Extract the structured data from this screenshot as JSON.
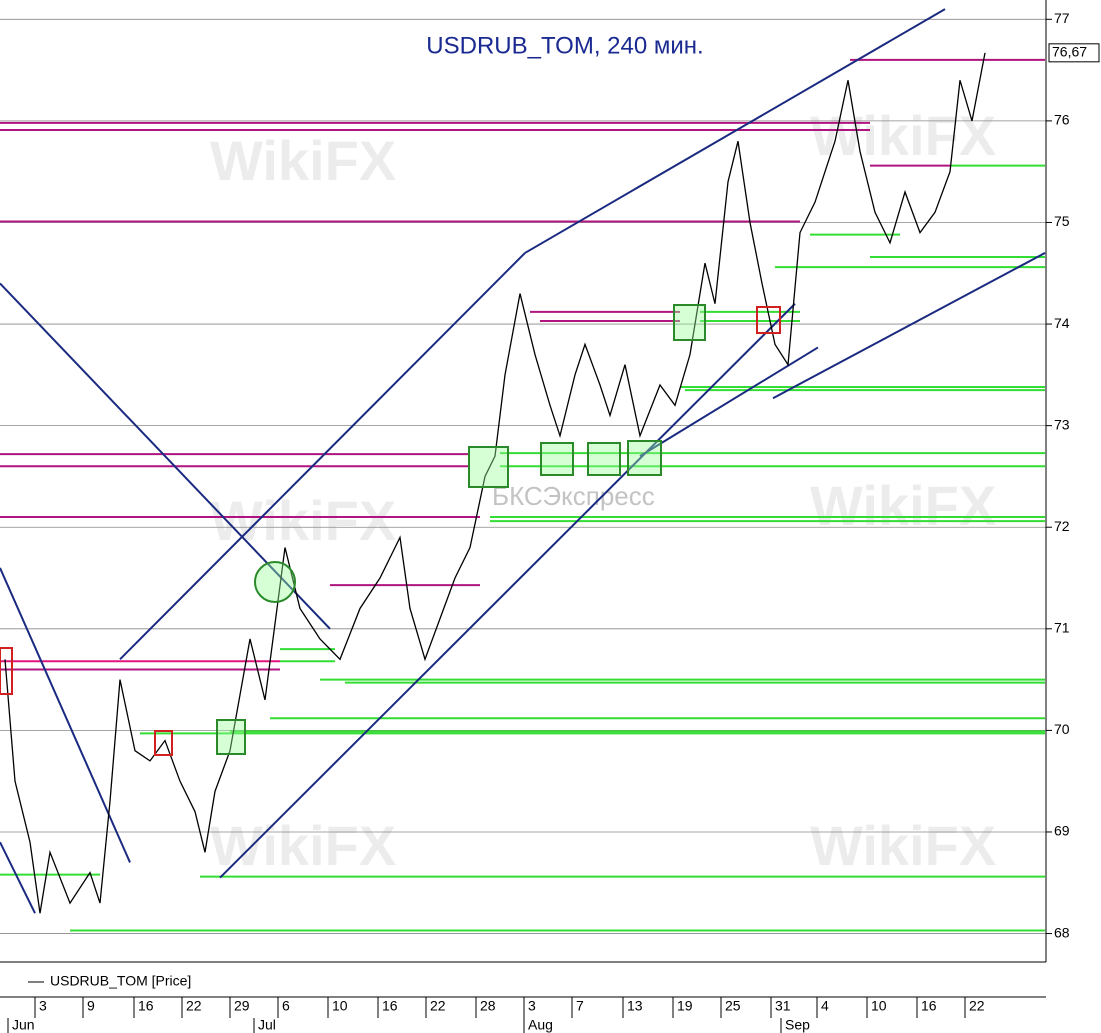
{
  "chart_data": {
    "type": "line",
    "title": "USDRUB_TOM, 240 мин.",
    "watermarks": [
      "WikiFX",
      "БКСЭкспресс"
    ],
    "series": [
      {
        "name": "USDRUB_TOM [Price]",
        "color": "#000000",
        "x": [
          5,
          15,
          30,
          40,
          50,
          70,
          90,
          100,
          110,
          120,
          135,
          150,
          165,
          180,
          195,
          205,
          215,
          230,
          250,
          265,
          285,
          300,
          320,
          340,
          360,
          380,
          400,
          410,
          425,
          440,
          455,
          470,
          485,
          495,
          505,
          520,
          535,
          550,
          560,
          575,
          585,
          600,
          610,
          625,
          640,
          660,
          675,
          690,
          705,
          715,
          728,
          738,
          750,
          762,
          775,
          788,
          800,
          815,
          835,
          848,
          860,
          875,
          890,
          905,
          920,
          935,
          950,
          960,
          972,
          985
        ],
        "values": [
          70.7,
          69.5,
          68.9,
          68.2,
          68.8,
          68.3,
          68.6,
          68.3,
          69.3,
          70.5,
          69.8,
          69.7,
          69.9,
          69.5,
          69.2,
          68.8,
          69.4,
          69.8,
          70.9,
          70.3,
          71.8,
          71.2,
          70.9,
          70.7,
          71.2,
          71.5,
          71.9,
          71.2,
          70.7,
          71.1,
          71.5,
          71.8,
          72.5,
          72.7,
          73.5,
          74.3,
          73.7,
          73.2,
          72.9,
          73.5,
          73.8,
          73.4,
          73.1,
          73.6,
          72.9,
          73.4,
          73.2,
          73.7,
          74.6,
          74.2,
          75.4,
          75.8,
          75.0,
          74.4,
          73.8,
          73.6,
          74.9,
          75.2,
          75.8,
          76.4,
          75.7,
          75.1,
          74.8,
          75.3,
          74.9,
          75.1,
          75.5,
          76.4,
          76.0,
          76.67
        ]
      }
    ],
    "last_price": {
      "value": 76.67,
      "label": "76,67"
    },
    "xlim": [
      0,
      1045
    ],
    "ylim": [
      67.72,
      77.19
    ],
    "yticks": [
      68,
      69,
      70,
      71,
      72,
      73,
      74,
      75,
      76,
      77
    ],
    "xticks": [
      {
        "value": 35,
        "label": "3"
      },
      {
        "value": 83,
        "label": "9"
      },
      {
        "value": 134,
        "label": "16"
      },
      {
        "value": 182,
        "label": "22"
      },
      {
        "value": 230,
        "label": "29"
      },
      {
        "value": 278,
        "label": "6"
      },
      {
        "value": 328,
        "label": "10"
      },
      {
        "value": 378,
        "label": "16"
      },
      {
        "value": 426,
        "label": "22"
      },
      {
        "value": 476,
        "label": "28"
      },
      {
        "value": 524,
        "label": "3"
      },
      {
        "value": 572,
        "label": "7"
      },
      {
        "value": 623,
        "label": "13"
      },
      {
        "value": 673,
        "label": "19"
      },
      {
        "value": 721,
        "label": "25"
      },
      {
        "value": 771,
        "label": "31"
      },
      {
        "value": 817,
        "label": "4"
      },
      {
        "value": 867,
        "label": "10"
      },
      {
        "value": 917,
        "label": "16"
      },
      {
        "value": 965,
        "label": "22"
      }
    ],
    "month_ticks": [
      {
        "value": 8,
        "label": "Jun"
      },
      {
        "value": 254,
        "label": "Jul"
      },
      {
        "value": 524,
        "label": "Aug"
      },
      {
        "value": 781,
        "label": "Sep"
      }
    ],
    "grid": true,
    "levels": [
      {
        "x": [
          0,
          870
        ],
        "value": 75.98,
        "color": "#b0157f"
      },
      {
        "x": [
          0,
          870
        ],
        "value": 75.91,
        "color": "#b0157f"
      },
      {
        "x": [
          0,
          800
        ],
        "value": 75.01,
        "color": "#b0157f"
      },
      {
        "x": [
          0,
          470
        ],
        "value": 72.72,
        "color": "#b0157f"
      },
      {
        "x": [
          0,
          470
        ],
        "value": 72.6,
        "color": "#b0157f"
      },
      {
        "x": [
          0,
          480
        ],
        "value": 72.1,
        "color": "#b0157f"
      },
      {
        "x": [
          0,
          280
        ],
        "value": 70.68,
        "color": "#e0157f"
      },
      {
        "x": [
          0,
          280
        ],
        "value": 70.6,
        "color": "#b0157f"
      },
      {
        "x": [
          850,
          1045
        ],
        "value": 76.6,
        "color": "#b0157f"
      },
      {
        "x": [
          330,
          480
        ],
        "value": 71.43,
        "color": "#b0157f"
      },
      {
        "x": [
          530,
          680
        ],
        "value": 74.12,
        "color": "#b0157f"
      },
      {
        "x": [
          540,
          680
        ],
        "value": 74.03,
        "color": "#b0157f"
      },
      {
        "x": [
          870,
          950
        ],
        "value": 75.56,
        "color": "#b0157f"
      },
      {
        "x": [
          950,
          1045
        ],
        "value": 75.56,
        "color": "#33dd33"
      },
      {
        "x": [
          810,
          900
        ],
        "value": 74.88,
        "color": "#33dd33"
      },
      {
        "x": [
          870,
          1045
        ],
        "value": 74.66,
        "color": "#33dd33"
      },
      {
        "x": [
          775,
          1045
        ],
        "value": 74.56,
        "color": "#33dd33"
      },
      {
        "x": [
          680,
          1045
        ],
        "value": 73.38,
        "color": "#33dd33"
      },
      {
        "x": [
          685,
          1045
        ],
        "value": 73.35,
        "color": "#33dd33"
      },
      {
        "x": [
          500,
          1045
        ],
        "value": 72.73,
        "color": "#33dd33"
      },
      {
        "x": [
          500,
          1045
        ],
        "value": 72.6,
        "color": "#33dd33"
      },
      {
        "x": [
          490,
          1045
        ],
        "value": 72.1,
        "color": "#33dd33"
      },
      {
        "x": [
          490,
          1045
        ],
        "value": 72.06,
        "color": "#33dd33"
      },
      {
        "x": [
          280,
          335
        ],
        "value": 70.8,
        "color": "#33dd33"
      },
      {
        "x": [
          280,
          335
        ],
        "value": 70.68,
        "color": "#33dd33"
      },
      {
        "x": [
          320,
          1045
        ],
        "value": 70.5,
        "color": "#33dd33"
      },
      {
        "x": [
          345,
          1045
        ],
        "value": 70.47,
        "color": "#33dd33"
      },
      {
        "x": [
          270,
          1045
        ],
        "value": 70.12,
        "color": "#33dd33"
      },
      {
        "x": [
          230,
          1045
        ],
        "value": 69.99,
        "color": "#33dd33"
      },
      {
        "x": [
          140,
          1045
        ],
        "value": 69.97,
        "color": "#33dd33"
      },
      {
        "x": [
          200,
          1045
        ],
        "value": 68.56,
        "color": "#33dd33"
      },
      {
        "x": [
          0,
          100
        ],
        "value": 68.58,
        "color": "#33dd33"
      },
      {
        "x": [
          70,
          1045
        ],
        "value": 68.03,
        "color": "#33dd33"
      },
      {
        "x": [
          700,
          800
        ],
        "value": 74.12,
        "color": "#33dd33"
      },
      {
        "x": [
          700,
          800
        ],
        "value": 74.03,
        "color": "#33dd33"
      }
    ],
    "trendlines": [
      {
        "x": [
          0,
          330
        ],
        "values": [
          74.4,
          71.0
        ],
        "color": "#1a2a80"
      },
      {
        "x": [
          0,
          130
        ],
        "values": [
          71.6,
          68.7
        ],
        "color": "#1a2a80"
      },
      {
        "x": [
          0,
          35
        ],
        "values": [
          68.9,
          68.2
        ],
        "color": "#1a2a80"
      },
      {
        "x": [
          120,
          525
        ],
        "values": [
          70.7,
          74.7
        ],
        "color": "#1a2a80"
      },
      {
        "x": [
          525,
          945
        ],
        "values": [
          74.7,
          77.1
        ],
        "color": "#1a2a80"
      },
      {
        "x": [
          220,
          795
        ],
        "values": [
          68.55,
          74.2
        ],
        "color": "#1a2a80"
      },
      {
        "x": [
          640,
          818
        ],
        "values": [
          72.7,
          73.77
        ],
        "color": "#1a2a80"
      },
      {
        "x": [
          773,
          1045
        ],
        "values": [
          73.27,
          74.7
        ],
        "color": "#1a2a80"
      }
    ]
  }
}
